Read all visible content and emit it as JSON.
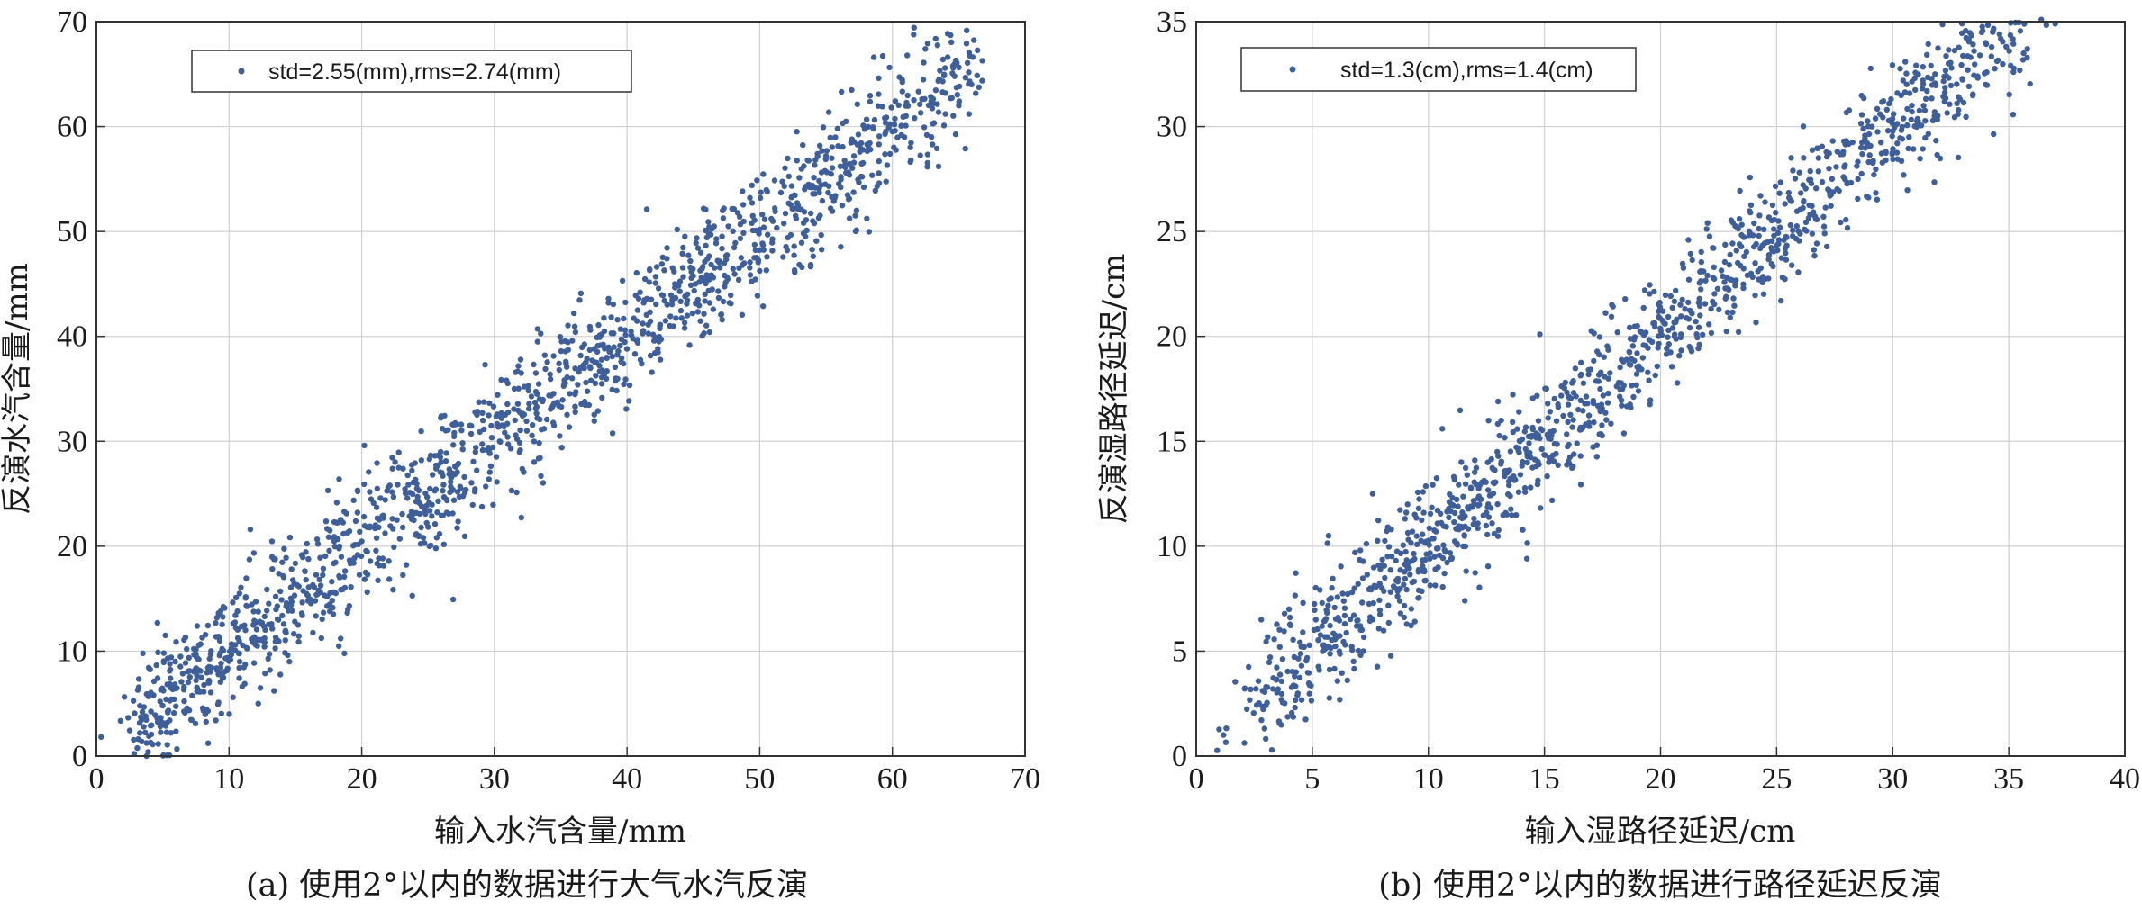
{
  "chart_data": [
    {
      "type": "scatter",
      "xlabel": "输入水汽含量/mm",
      "ylabel": "反演水汽含量/mm",
      "caption": "(a) 使用2°以内的数据进行大气水汽反演",
      "xlim": [
        0,
        70
      ],
      "ylim": [
        0,
        70
      ],
      "xticks": [
        0,
        10,
        20,
        30,
        40,
        50,
        60,
        70
      ],
      "yticks": [
        0,
        10,
        20,
        30,
        40,
        50,
        60,
        70
      ],
      "grid": true,
      "legend_position": "top-left",
      "legend": "std=2.55(mm),rms=2.74(mm)",
      "series": [
        {
          "name": "std=2.55(mm),rms=2.74(mm)",
          "color": "#3f5f9b",
          "trend": "y ≈ x",
          "x_range": [
            3.5,
            65.5
          ],
          "points": [
            [
              3.5,
              9.8
            ],
            [
              4.6,
              12.7
            ],
            [
              4.8,
              5.2
            ],
            [
              5.0,
              4.8
            ],
            [
              5.2,
              11.5
            ],
            [
              6.8,
              10.2
            ],
            [
              7.6,
              12.4
            ],
            [
              8.5,
              7.1
            ],
            [
              9.0,
              3.4
            ],
            [
              9.3,
              11.0
            ],
            [
              10.3,
              5.6
            ],
            [
              10.8,
              9.0
            ],
            [
              11.6,
              21.6
            ],
            [
              12.2,
              5.0
            ],
            [
              13.5,
              10.9
            ],
            [
              14.3,
              18.9
            ],
            [
              15.2,
              12.5
            ],
            [
              15.8,
              16.8
            ],
            [
              16.5,
              14.8
            ],
            [
              17.6,
              21.5
            ],
            [
              18.3,
              26.4
            ],
            [
              19.4,
              18.4
            ],
            [
              20.2,
              29.6
            ],
            [
              21.0,
              21.7
            ],
            [
              22.4,
              24.7
            ],
            [
              23.8,
              22.9
            ],
            [
              24.5,
              28.2
            ],
            [
              25.1,
              20.0
            ],
            [
              25.6,
              27.4
            ],
            [
              26.0,
              32.4
            ],
            [
              26.8,
              25.3
            ],
            [
              27.5,
              31.6
            ],
            [
              28.6,
              29.4
            ],
            [
              29.3,
              37.3
            ],
            [
              30.4,
              30.0
            ],
            [
              31.5,
              35.0
            ],
            [
              32.6,
              33.1
            ],
            [
              33.8,
              38.2
            ],
            [
              34.5,
              31.5
            ],
            [
              35.4,
              37.4
            ],
            [
              36.0,
              42.2
            ],
            [
              36.9,
              35.6
            ],
            [
              37.8,
              39.1
            ],
            [
              38.6,
              43.2
            ],
            [
              39.5,
              40.7
            ],
            [
              40.8,
              42.5
            ],
            [
              41.7,
              46.4
            ],
            [
              42.4,
              39.5
            ],
            [
              43.6,
              45.0
            ],
            [
              44.5,
              43.1
            ],
            [
              45.2,
              48.9
            ],
            [
              45.8,
              40.3
            ],
            [
              46.5,
              45.6
            ],
            [
              47.3,
              52.2
            ],
            [
              48.6,
              47.5
            ],
            [
              49.4,
              50.8
            ],
            [
              50.5,
              46.3
            ],
            [
              51.6,
              53.7
            ],
            [
              52.7,
              51.5
            ],
            [
              53.5,
              54.3
            ],
            [
              54.0,
              51.0
            ],
            [
              55.0,
              57.2
            ],
            [
              55.7,
              53.4
            ],
            [
              56.5,
              55.6
            ],
            [
              57.3,
              52.0
            ],
            [
              58.2,
              58.0
            ],
            [
              59.0,
              54.6
            ],
            [
              60.2,
              59.6
            ],
            [
              61.4,
              56.8
            ],
            [
              62.6,
              59.2
            ],
            [
              64.0,
              61.2
            ],
            [
              65.0,
              62.0
            ],
            [
              65.5,
              57.9
            ]
          ]
        }
      ]
    },
    {
      "type": "scatter",
      "xlabel": "输入湿路径延迟/cm",
      "ylabel": "反演湿路径延迟/cm",
      "caption": "(b) 使用2°以内的数据进行路径延迟反演",
      "xlim": [
        0,
        40
      ],
      "ylim": [
        0,
        35
      ],
      "xticks": [
        0,
        5,
        10,
        15,
        20,
        25,
        30,
        35,
        40
      ],
      "yticks": [
        0,
        5,
        10,
        15,
        20,
        25,
        30,
        35
      ],
      "grid": true,
      "legend_position": "top-left",
      "legend": "std=1.3(cm),rms=1.4(cm)",
      "series": [
        {
          "name": "std=1.3(cm),rms=1.4(cm)",
          "color": "#3f5f9b",
          "trend": "y ≈ x",
          "x_range": [
            2.8,
            37.0
          ],
          "points": [
            [
              2.8,
              6.5
            ],
            [
              3.3,
              3.2
            ],
            [
              3.6,
              5.2
            ],
            [
              4.0,
              7.0
            ],
            [
              4.6,
              7.3
            ],
            [
              5.3,
              4.1
            ],
            [
              5.7,
              10.5
            ],
            [
              6.4,
              6.3
            ],
            [
              7.2,
              5.0
            ],
            [
              7.6,
              12.5
            ],
            [
              8.0,
              8.0
            ],
            [
              8.4,
              10.8
            ],
            [
              8.8,
              6.8
            ],
            [
              9.3,
              9.3
            ],
            [
              9.8,
              11.6
            ],
            [
              10.3,
              8.9
            ],
            [
              10.6,
              15.6
            ],
            [
              11.0,
              12.0
            ],
            [
              11.5,
              10.0
            ],
            [
              12.0,
              14.1
            ],
            [
              12.5,
              11.6
            ],
            [
              13.0,
              16.9
            ],
            [
              13.4,
              13.6
            ],
            [
              13.9,
              16.4
            ],
            [
              14.4,
              12.8
            ],
            [
              14.8,
              20.1
            ],
            [
              15.3,
              15.3
            ],
            [
              15.9,
              17.8
            ],
            [
              16.4,
              14.9
            ],
            [
              16.9,
              18.4
            ],
            [
              17.4,
              16.5
            ],
            [
              17.9,
              21.5
            ],
            [
              18.4,
              18.8
            ],
            [
              19.0,
              20.5
            ],
            [
              19.5,
              17.9
            ],
            [
              20.1,
              21.2
            ],
            [
              20.6,
              20.0
            ],
            [
              21.2,
              24.6
            ],
            [
              21.7,
              21.0
            ],
            [
              22.3,
              23.3
            ],
            [
              22.8,
              21.8
            ],
            [
              23.4,
              25.6
            ],
            [
              23.9,
              23.0
            ],
            [
              24.5,
              26.4
            ],
            [
              25.1,
              24.6
            ],
            [
              25.7,
              27.9
            ],
            [
              26.2,
              25.1
            ],
            [
              26.8,
              28.5
            ],
            [
              27.3,
              26.7
            ],
            [
              27.9,
              29.3
            ],
            [
              28.5,
              27.5
            ],
            [
              29.1,
              30.0
            ],
            [
              29.7,
              28.8
            ],
            [
              30.2,
              31.6
            ],
            [
              30.7,
              29.5
            ],
            [
              31.3,
              32.2
            ],
            [
              31.8,
              30.5
            ],
            [
              32.4,
              33.0
            ],
            [
              32.9,
              31.3
            ],
            [
              33.5,
              33.6
            ],
            [
              34.0,
              32.0
            ],
            [
              34.6,
              34.4
            ],
            [
              35.2,
              32.6
            ],
            [
              35.8,
              33.7
            ],
            [
              36.4,
              35.1
            ],
            [
              37.0,
              34.9
            ]
          ]
        }
      ]
    }
  ]
}
